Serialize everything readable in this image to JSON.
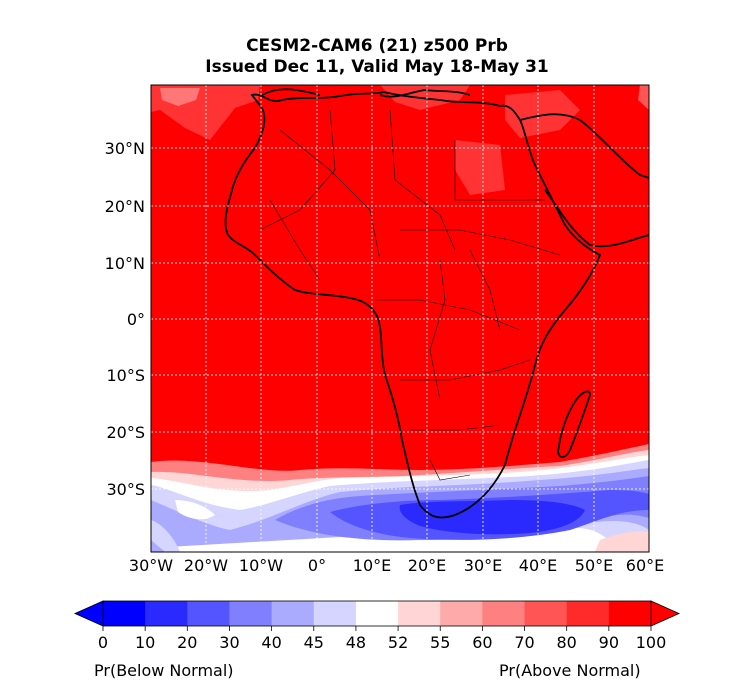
{
  "title_line1": "CESM2-CAM6 (21) z500 Prb",
  "title_line2": "Issued Dec 11, Valid May 18-May 31",
  "map": {
    "lat_labels": [
      "30°N",
      "20°N",
      "10°N",
      "0°",
      "10°S",
      "20°S",
      "30°S"
    ],
    "lon_labels": [
      "30°W",
      "20°W",
      "10°W",
      "0°",
      "10°E",
      "20°E",
      "30°E",
      "40°E",
      "50°E",
      "60°E"
    ],
    "region": "Africa",
    "dominant_category": "90-100 Pr(Above Normal)",
    "below_normal_region": "south of ~25°S, strongest 10-20 near 30-45°E, 35°S"
  },
  "colorbar": {
    "tick_labels": [
      "0",
      "10",
      "20",
      "30",
      "40",
      "45",
      "48",
      "52",
      "55",
      "60",
      "70",
      "80",
      "90",
      "100"
    ],
    "colors": [
      "#0000ff",
      "#2a2aff",
      "#5555ff",
      "#8080ff",
      "#aaaaff",
      "#d5d5ff",
      "#ffffff",
      "#ffd5d5",
      "#ffaaaa",
      "#ff8080",
      "#ff5555",
      "#ff2a2a",
      "#ff0000"
    ],
    "left_label": "Pr(Below Normal)",
    "right_label": "Pr(Above Normal)"
  }
}
